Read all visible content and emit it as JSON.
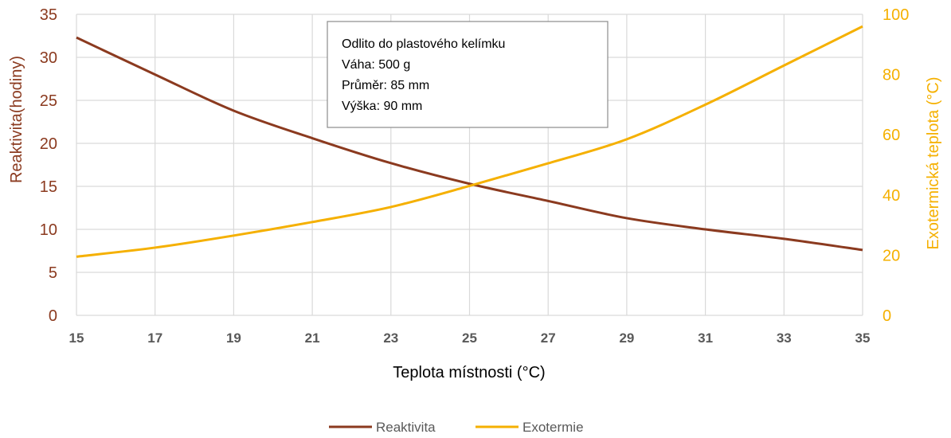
{
  "chart_data": {
    "type": "line",
    "xlabel": "Teplota místnosti (°C)",
    "ylabel": "Reaktivita(hodiny)",
    "y2label": "Exotermická teplota (°C)",
    "xlim": [
      15,
      35
    ],
    "xticks": [
      15,
      17,
      19,
      21,
      23,
      25,
      27,
      29,
      31,
      33,
      35
    ],
    "ylim": [
      0,
      35
    ],
    "yticks": [
      0,
      5,
      10,
      15,
      20,
      25,
      30,
      35
    ],
    "y2lim": [
      0,
      100
    ],
    "y2ticks": [
      0,
      20,
      40,
      60,
      80,
      100
    ],
    "grid": true,
    "legend_position": "bottom",
    "series": [
      {
        "name": "Reaktivita",
        "axis": "left",
        "color": "#8b3a1f",
        "x": [
          15,
          17,
          19,
          21,
          23,
          25,
          27,
          29,
          31,
          33,
          35
        ],
        "y": [
          32.3,
          28.0,
          23.8,
          20.6,
          17.7,
          15.3,
          13.3,
          11.3,
          10.0,
          8.9,
          7.6
        ]
      },
      {
        "name": "Exotermie",
        "axis": "right",
        "color": "#f5b000",
        "x": [
          15,
          17,
          19,
          21,
          23,
          25,
          27,
          29,
          31,
          33,
          35
        ],
        "y": [
          19.5,
          22.5,
          26.5,
          31,
          36,
          43,
          50.5,
          58.5,
          70,
          83,
          96
        ]
      }
    ],
    "annotation": {
      "lines": [
        "Odlito do plastového kelímku",
        "Váha: 500 g",
        "Průměr: 85 mm",
        "Výška: 90 mm"
      ]
    }
  }
}
